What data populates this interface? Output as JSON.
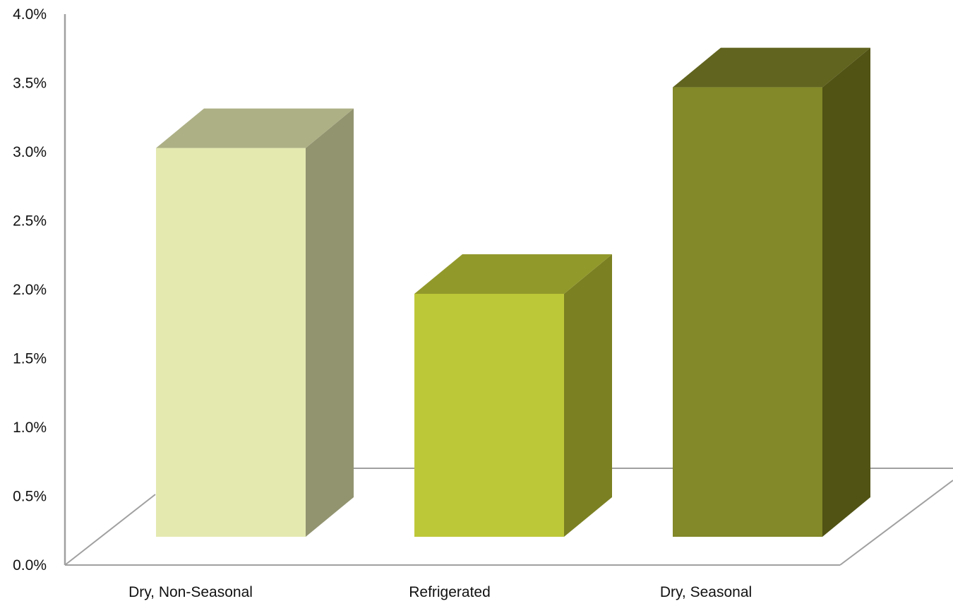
{
  "chart_data": {
    "type": "bar",
    "style": "3d-column",
    "title": "",
    "xlabel": "",
    "ylabel": "",
    "categories": [
      "Dry, Non-Seasonal",
      "Refrigerated",
      "Dry, Seasonal"
    ],
    "values": [
      3.2,
      2.0,
      3.7
    ],
    "ylim": [
      0,
      4
    ],
    "yticks": [
      "0.0%",
      "0.5%",
      "1.0%",
      "1.5%",
      "2.0%",
      "2.5%",
      "3.0%",
      "3.5%",
      "4.0%"
    ],
    "grid": false,
    "legend": "none",
    "colors": [
      {
        "front": "#e4e9b0",
        "top": "#adb085",
        "side": "#929470"
      },
      {
        "front": "#bdc838",
        "top": "#92992b",
        "side": "#7b8022"
      },
      {
        "front": "#838828",
        "top": "#60641e",
        "side": "#505314"
      }
    ],
    "axis_color": "#a0a0a0"
  }
}
